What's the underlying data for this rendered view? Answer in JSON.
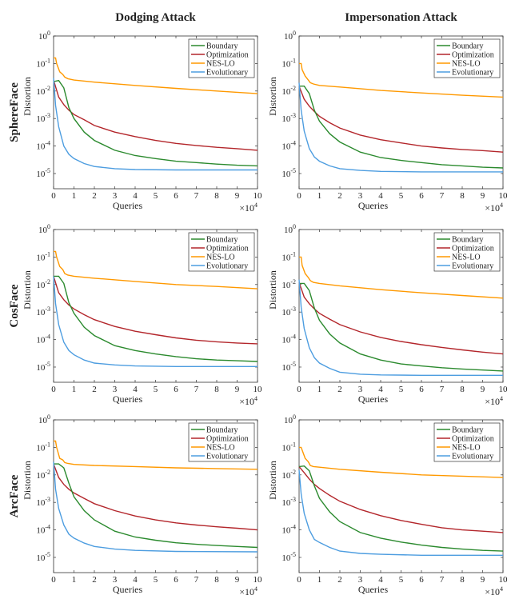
{
  "chart_data": {
    "type": "line",
    "column_titles": [
      "Dodging Attack",
      "Impersonation Attack"
    ],
    "row_labels": [
      "SphereFace",
      "CosFace",
      "ArcFace"
    ],
    "xlabel": "Queries",
    "x_multiplier_label": "×10",
    "x_multiplier_exp": "4",
    "ylabel": "Distortion",
    "y_scale": "log",
    "ylim": [
      2.8e-06,
      1
    ],
    "xlim": [
      0,
      100000
    ],
    "x_tick_labels": [
      "0",
      "1",
      "2",
      "3",
      "4",
      "5",
      "6",
      "7",
      "8",
      "9",
      "10"
    ],
    "y_tick_exponents": [
      "0",
      "-1",
      "-2",
      "-3",
      "-4",
      "-5"
    ],
    "legend_placement": "top-right",
    "series_names": [
      "Boundary",
      "Optimization",
      "NES-LO",
      "Evolutionary"
    ],
    "colors": {
      "Boundary": "#2b8a2e",
      "Optimization": "#b3262b",
      "NES-LO": "#ff9900",
      "Evolutionary": "#4d9de0"
    },
    "x_common": [
      0,
      2500,
      5000,
      7500,
      10000,
      15000,
      20000,
      30000,
      40000,
      50000,
      60000,
      70000,
      80000,
      90000,
      100000
    ],
    "x_nes": [
      0,
      1000,
      1500,
      3000,
      4500,
      5500,
      7000,
      10000,
      20000,
      40000,
      60000,
      80000,
      100000
    ],
    "x_evo": [
      0,
      1000,
      2500,
      5000,
      7500,
      10000,
      15000,
      20000,
      30000,
      40000,
      60000,
      100000
    ],
    "panels": [
      {
        "row": "SphereFace",
        "attack": "Dodging Attack",
        "Boundary": [
          0.022,
          0.024,
          0.013,
          0.0025,
          0.001,
          0.00032,
          0.00016,
          7e-05,
          4.5e-05,
          3.5e-05,
          2.8e-05,
          2.5e-05,
          2.2e-05,
          2e-05,
          1.9e-05
        ],
        "Optimization": [
          0.025,
          0.006,
          0.0032,
          0.002,
          0.0014,
          0.0009,
          0.00056,
          0.00032,
          0.00022,
          0.00016,
          0.000125,
          0.000105,
          9e-05,
          8e-05,
          7e-05
        ],
        "NES-LO": [
          0.16,
          0.16,
          0.1,
          0.05,
          0.04,
          0.032,
          0.028,
          0.025,
          0.021,
          0.016,
          0.0125,
          0.01,
          0.008
        ],
        "Evolutionary": [
          0.03,
          0.003,
          0.0005,
          0.0001,
          5e-05,
          3.5e-05,
          2.3e-05,
          1.8e-05,
          1.5e-05,
          1.4e-05,
          1.35e-05,
          1.35e-05
        ]
      },
      {
        "row": "SphereFace",
        "attack": "Impersonation Attack",
        "Boundary": [
          0.015,
          0.015,
          0.008,
          0.002,
          0.0008,
          0.00028,
          0.00014,
          6e-05,
          3.8e-05,
          3e-05,
          2.5e-05,
          2.1e-05,
          1.9e-05,
          1.7e-05,
          1.6e-05
        ],
        "Optimization": [
          0.015,
          0.005,
          0.0028,
          0.0018,
          0.0012,
          0.0007,
          0.00045,
          0.00025,
          0.00017,
          0.00013,
          0.0001,
          8.5e-05,
          7.5e-05,
          6.8e-05,
          6e-05
        ],
        "NES-LO": [
          0.1,
          0.1,
          0.06,
          0.035,
          0.025,
          0.02,
          0.018,
          0.016,
          0.014,
          0.0105,
          0.0085,
          0.007,
          0.006
        ],
        "Evolutionary": [
          0.02,
          0.002,
          0.00035,
          8e-05,
          4e-05,
          2.8e-05,
          1.9e-05,
          1.5e-05,
          1.3e-05,
          1.2e-05,
          1.15e-05,
          1.15e-05
        ]
      },
      {
        "row": "CosFace",
        "attack": "Dodging Attack",
        "Boundary": [
          0.02,
          0.02,
          0.011,
          0.0022,
          0.0009,
          0.00028,
          0.00014,
          6e-05,
          4e-05,
          3e-05,
          2.4e-05,
          2e-05,
          1.8e-05,
          1.7e-05,
          1.6e-05
        ],
        "Optimization": [
          0.02,
          0.005,
          0.0028,
          0.0018,
          0.0013,
          0.0008,
          0.00053,
          0.0003,
          0.0002,
          0.00015,
          0.000115,
          9.5e-05,
          8.3e-05,
          7.5e-05,
          7e-05
        ],
        "NES-LO": [
          0.16,
          0.16,
          0.1,
          0.045,
          0.035,
          0.025,
          0.022,
          0.02,
          0.017,
          0.013,
          0.01,
          0.0085,
          0.007
        ],
        "Evolutionary": [
          0.02,
          0.002,
          0.00035,
          8e-05,
          4e-05,
          2.8e-05,
          1.8e-05,
          1.4e-05,
          1.2e-05,
          1.1e-05,
          1.05e-05,
          1.05e-05
        ]
      },
      {
        "row": "CosFace",
        "attack": "Impersonation Attack",
        "Boundary": [
          0.011,
          0.011,
          0.006,
          0.0014,
          0.0005,
          0.00016,
          7.5e-05,
          3e-05,
          1.8e-05,
          1.3e-05,
          1.1e-05,
          9.5e-06,
          8.5e-06,
          7.8e-06,
          7.2e-06
        ],
        "Optimization": [
          0.012,
          0.0035,
          0.002,
          0.0013,
          0.0009,
          0.00055,
          0.00035,
          0.00019,
          0.00012,
          8.5e-05,
          6.5e-05,
          5.2e-05,
          4.2e-05,
          3.5e-05,
          3e-05
        ],
        "NES-LO": [
          0.1,
          0.1,
          0.05,
          0.025,
          0.018,
          0.014,
          0.012,
          0.011,
          0.009,
          0.0065,
          0.005,
          0.004,
          0.0032
        ],
        "Evolutionary": [
          0.015,
          0.0015,
          0.00025,
          5e-05,
          2.2e-05,
          1.4e-05,
          9e-06,
          6.5e-06,
          5.5e-06,
          5.2e-06,
          5e-06,
          5e-06
        ]
      },
      {
        "row": "ArcFace",
        "attack": "Dodging Attack",
        "Boundary": [
          0.025,
          0.025,
          0.018,
          0.005,
          0.0016,
          0.0005,
          0.00023,
          9e-05,
          5.5e-05,
          4.2e-05,
          3.4e-05,
          3e-05,
          2.7e-05,
          2.5e-05,
          2.3e-05
        ],
        "Optimization": [
          0.025,
          0.008,
          0.0045,
          0.003,
          0.0022,
          0.0014,
          0.0009,
          0.0005,
          0.00032,
          0.00023,
          0.00018,
          0.00015,
          0.00013,
          0.000115,
          0.0001
        ],
        "NES-LO": [
          0.17,
          0.17,
          0.1,
          0.04,
          0.035,
          0.028,
          0.026,
          0.024,
          0.022,
          0.02,
          0.018,
          0.017,
          0.016
        ],
        "Evolutionary": [
          0.03,
          0.003,
          0.0006,
          0.00015,
          7e-05,
          5e-05,
          3.3e-05,
          2.5e-05,
          2e-05,
          1.8e-05,
          1.65e-05,
          1.6e-05
        ]
      },
      {
        "row": "ArcFace",
        "attack": "Impersonation Attack",
        "Boundary": [
          0.02,
          0.021,
          0.014,
          0.004,
          0.0014,
          0.00045,
          0.0002,
          8e-05,
          5e-05,
          3.6e-05,
          2.8e-05,
          2.3e-05,
          2e-05,
          1.8e-05,
          1.7e-05
        ],
        "Optimization": [
          0.02,
          0.012,
          0.007,
          0.0045,
          0.0032,
          0.0018,
          0.0011,
          0.00055,
          0.00033,
          0.00022,
          0.00016,
          0.00012,
          0.0001,
          9e-05,
          8e-05
        ],
        "NES-LO": [
          0.1,
          0.1,
          0.08,
          0.04,
          0.03,
          0.022,
          0.02,
          0.019,
          0.016,
          0.0125,
          0.01,
          0.009,
          0.008
        ],
        "Evolutionary": [
          0.015,
          0.002,
          0.0004,
          0.0001,
          4.5e-05,
          3.5e-05,
          2.3e-05,
          1.7e-05,
          1.4e-05,
          1.3e-05,
          1.2e-05,
          1.2e-05
        ]
      }
    ]
  }
}
